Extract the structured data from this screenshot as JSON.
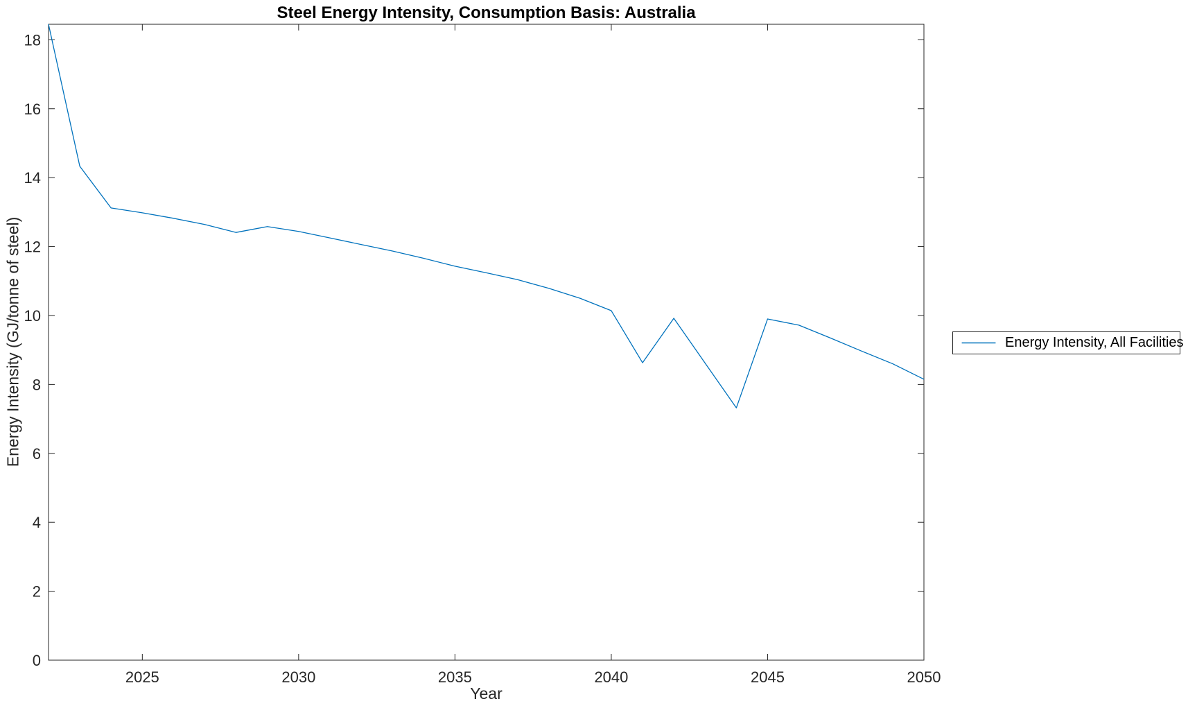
{
  "chart_data": {
    "type": "line",
    "title": "Steel Energy Intensity, Consumption Basis: Australia",
    "xlabel": "Year",
    "ylabel": "Energy Intensity (GJ/tonne of steel)",
    "xlim": [
      2022,
      2050
    ],
    "ylim": [
      0,
      18.45
    ],
    "xticks": [
      2025,
      2030,
      2035,
      2040,
      2045,
      2050
    ],
    "yticks": [
      0,
      2,
      4,
      6,
      8,
      10,
      12,
      14,
      16,
      18
    ],
    "grid": false,
    "legend_position": "outside-right",
    "axis_color": "#262626",
    "line_color": "#0072BD",
    "x": [
      2022,
      2023,
      2024,
      2025,
      2026,
      2027,
      2028,
      2029,
      2030,
      2031,
      2032,
      2033,
      2034,
      2035,
      2036,
      2037,
      2038,
      2039,
      2040,
      2041,
      2042,
      2043,
      2044,
      2045,
      2046,
      2047,
      2048,
      2049,
      2050
    ],
    "series": [
      {
        "name": "Energy Intensity, All Facilities",
        "values": [
          18.45,
          14.33,
          13.12,
          12.98,
          12.82,
          12.64,
          12.41,
          12.58,
          12.44,
          12.25,
          12.06,
          11.87,
          11.66,
          11.43,
          11.24,
          11.04,
          10.79,
          10.5,
          10.14,
          8.63,
          9.92,
          8.62,
          7.32,
          9.9,
          9.72,
          9.35,
          8.97,
          8.6,
          8.15
        ]
      }
    ]
  }
}
